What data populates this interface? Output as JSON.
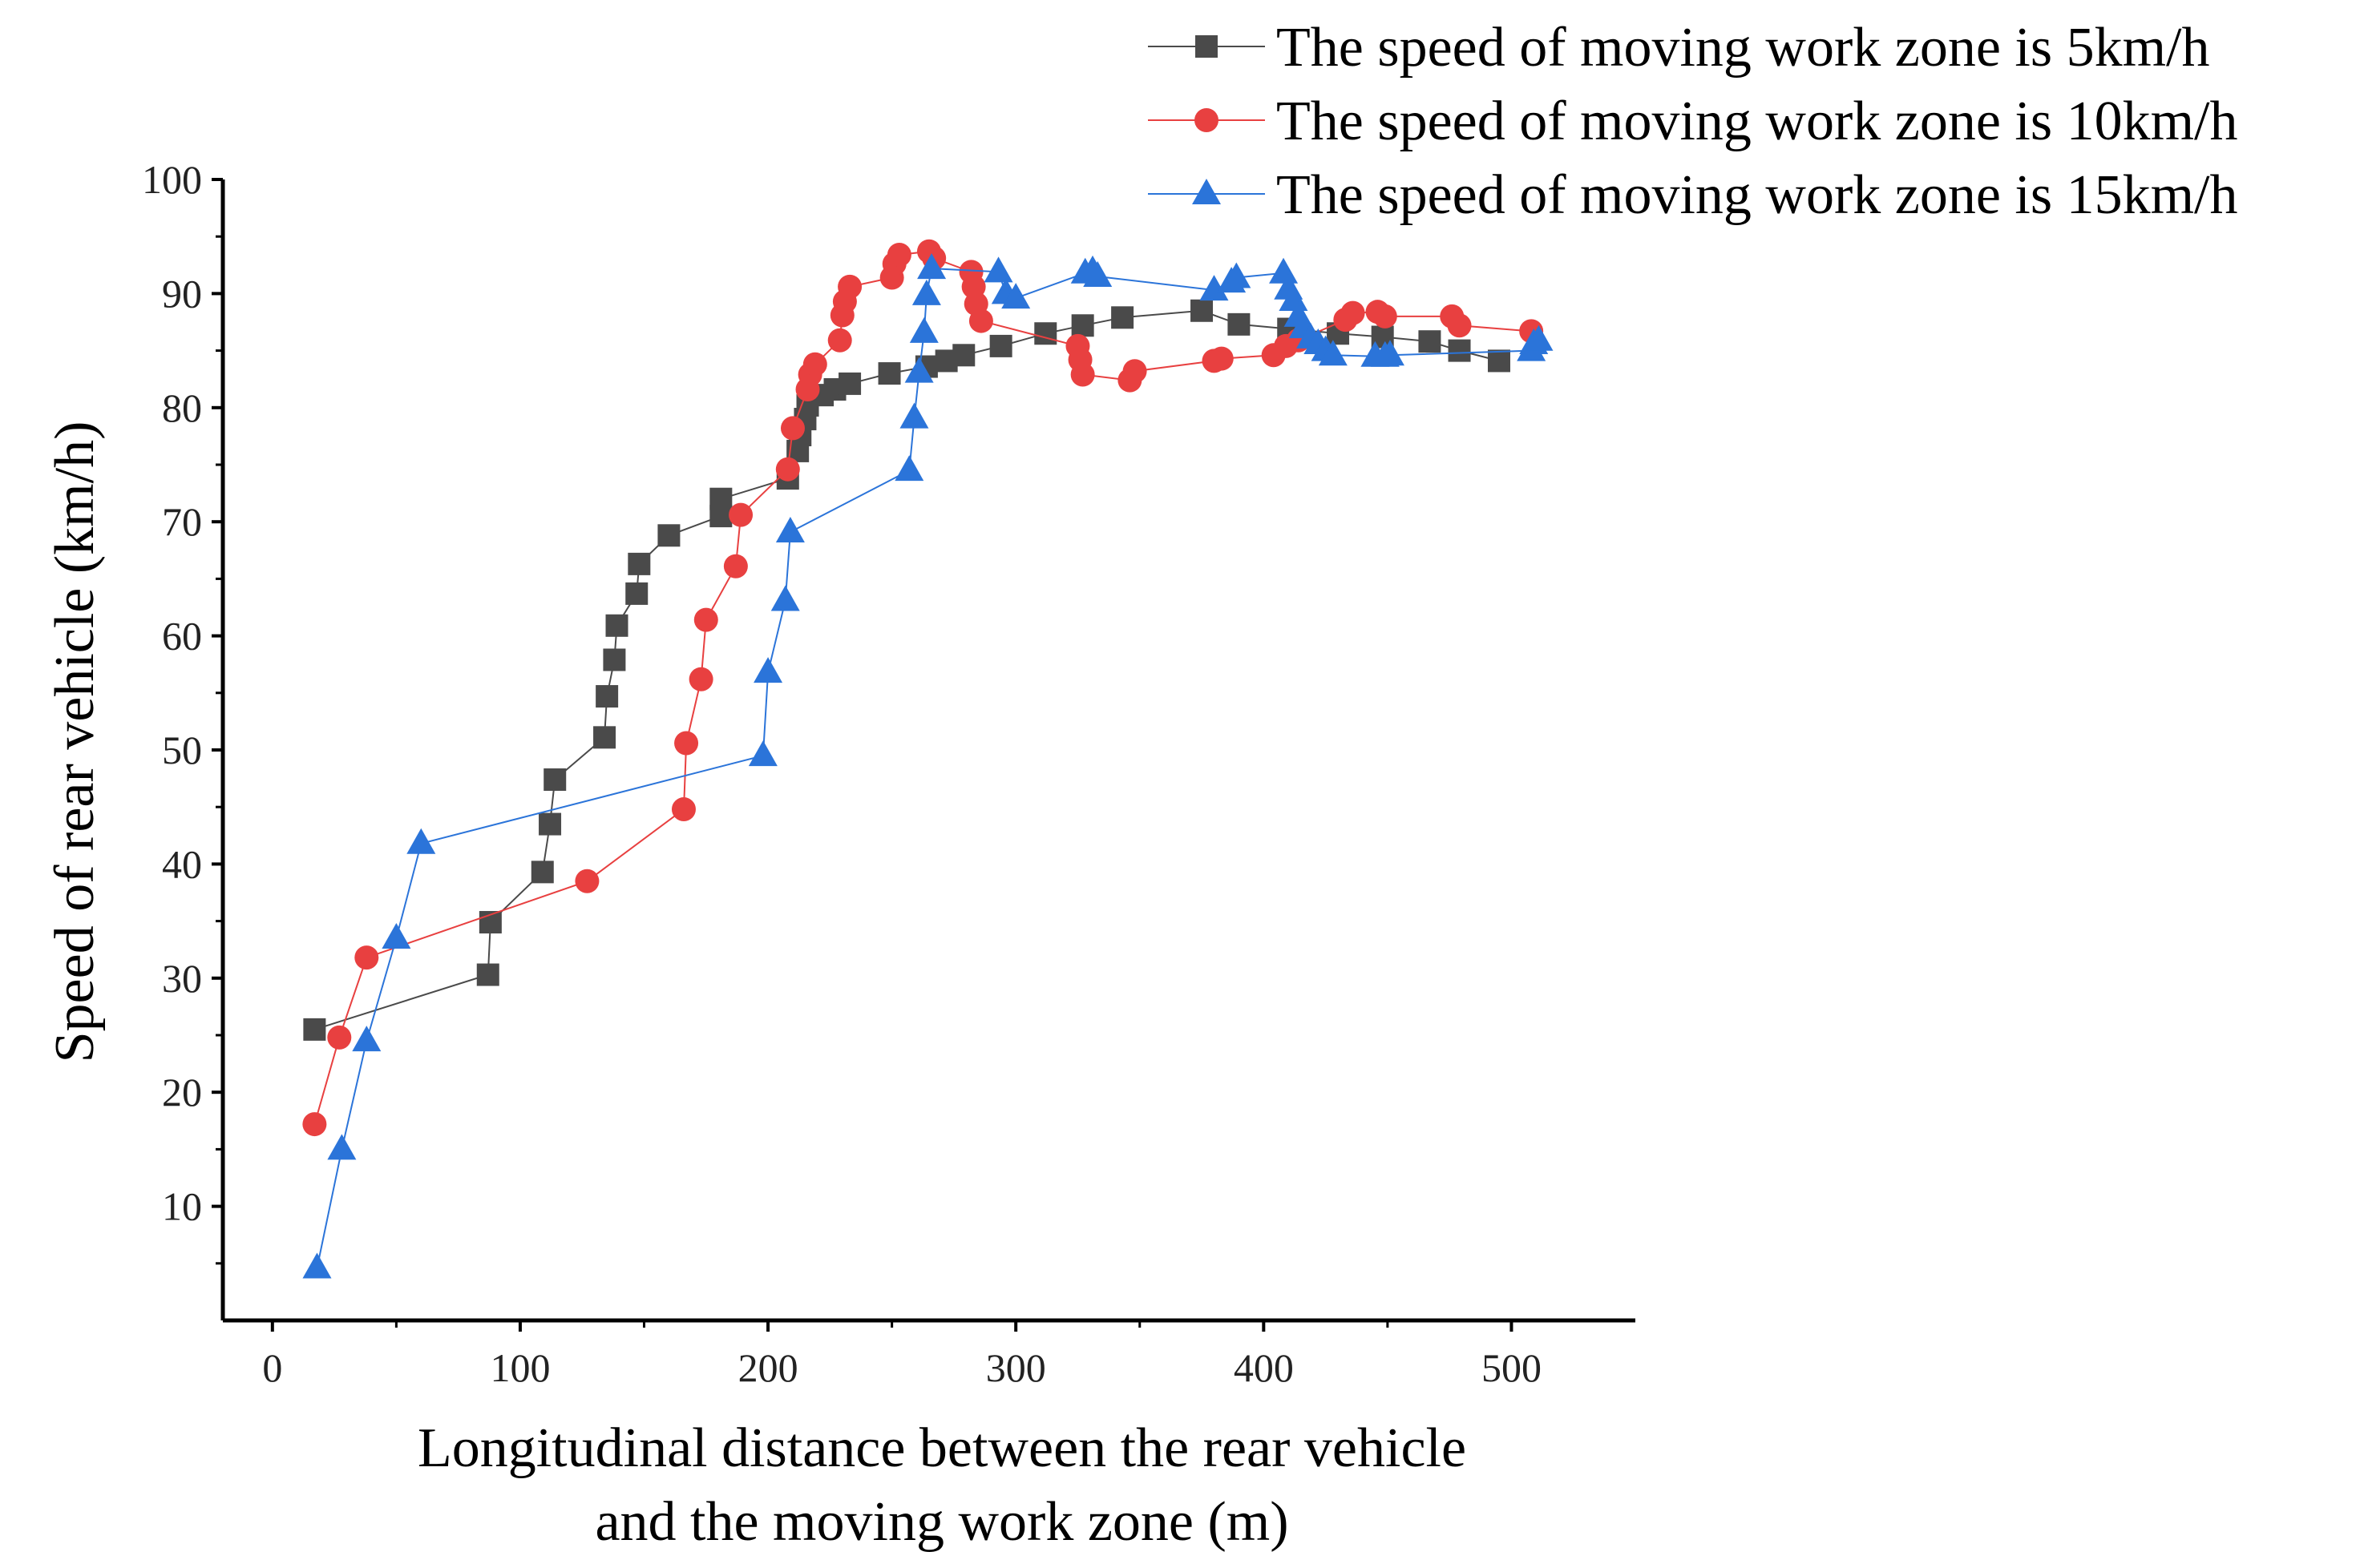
{
  "chart_data": {
    "type": "line",
    "title": "",
    "xlabel": [
      "Longitudinal distance between the rear vehicle",
      "and the moving work zone (m)"
    ],
    "ylabel": "Speed of rear vehicle (km/h)",
    "xlim": [
      -20,
      550
    ],
    "ylim": [
      0,
      100
    ],
    "xticks": [
      0,
      100,
      200,
      300,
      400,
      500
    ],
    "yticks": [
      10,
      20,
      30,
      40,
      50,
      60,
      70,
      80,
      90,
      100
    ],
    "grid": false,
    "legend_position": "top-right",
    "series": [
      {
        "name": "The speed of moving work zone is 5km/h",
        "color": "#4a4a4a",
        "marker": "square",
        "points": [
          [
            17,
            25.5
          ],
          [
            87,
            30.3
          ],
          [
            88,
            34.9
          ],
          [
            109,
            39.3
          ],
          [
            112,
            43.5
          ],
          [
            114,
            47.4
          ],
          [
            134,
            51.1
          ],
          [
            135,
            54.7
          ],
          [
            138,
            57.9
          ],
          [
            139,
            60.9
          ],
          [
            147,
            63.7
          ],
          [
            148,
            66.3
          ],
          [
            160,
            68.8
          ],
          [
            181,
            70.5
          ],
          [
            181,
            72.0
          ],
          [
            208,
            73.8
          ],
          [
            212,
            76.2
          ],
          [
            213,
            77.6
          ],
          [
            215,
            79.0
          ],
          [
            216,
            80.2
          ],
          [
            222,
            81.1
          ],
          [
            227,
            81.6
          ],
          [
            233,
            82.1
          ],
          [
            249,
            83.0
          ],
          [
            264,
            83.6
          ],
          [
            272,
            84.1
          ],
          [
            279,
            84.6
          ],
          [
            294,
            85.4
          ],
          [
            312,
            86.5
          ],
          [
            327,
            87.2
          ],
          [
            343,
            87.9
          ],
          [
            375,
            88.5
          ],
          [
            390,
            87.3
          ],
          [
            410,
            86.9
          ],
          [
            430,
            86.5
          ],
          [
            448,
            86.2
          ],
          [
            467,
            85.8
          ],
          [
            479,
            85.0
          ],
          [
            495,
            84.1
          ]
        ]
      },
      {
        "name": "The speed of moving work zone is 10km/h",
        "color": "#e84040",
        "marker": "circle",
        "points": [
          [
            17,
            17.2
          ],
          [
            27,
            24.8
          ],
          [
            38,
            31.8
          ],
          [
            127,
            38.5
          ],
          [
            166,
            44.8
          ],
          [
            167,
            50.6
          ],
          [
            173,
            56.2
          ],
          [
            175,
            61.4
          ],
          [
            187,
            66.1
          ],
          [
            189,
            70.6
          ],
          [
            208,
            74.6
          ],
          [
            210,
            78.2
          ],
          [
            216,
            81.6
          ],
          [
            217,
            82.9
          ],
          [
            219,
            83.8
          ],
          [
            229,
            85.9
          ],
          [
            230,
            88.1
          ],
          [
            231,
            89.3
          ],
          [
            233,
            90.6
          ],
          [
            250,
            91.4
          ],
          [
            251,
            92.6
          ],
          [
            253,
            93.4
          ],
          [
            265,
            93.7
          ],
          [
            267,
            93.1
          ],
          [
            282,
            91.9
          ],
          [
            283,
            90.6
          ],
          [
            284,
            89.1
          ],
          [
            286,
            87.6
          ],
          [
            325,
            85.4
          ],
          [
            326,
            84.2
          ],
          [
            327,
            82.9
          ],
          [
            346,
            82.4
          ],
          [
            348,
            83.2
          ],
          [
            380,
            84.1
          ],
          [
            383,
            84.3
          ],
          [
            404,
            84.6
          ],
          [
            409,
            85.4
          ],
          [
            414,
            85.9
          ],
          [
            433,
            87.7
          ],
          [
            436,
            88.3
          ],
          [
            446,
            88.4
          ],
          [
            449,
            88.0
          ],
          [
            476,
            88.0
          ],
          [
            479,
            87.2
          ],
          [
            508,
            86.7
          ]
        ]
      },
      {
        "name": "The speed of moving work zone is 15km/h",
        "color": "#2b74d9",
        "marker": "triangle",
        "points": [
          [
            18,
            4.6
          ],
          [
            28,
            15.0
          ],
          [
            38,
            24.5
          ],
          [
            50,
            33.5
          ],
          [
            60,
            41.8
          ],
          [
            198,
            49.5
          ],
          [
            200,
            56.8
          ],
          [
            207,
            63.1
          ],
          [
            209,
            69.1
          ],
          [
            257,
            74.5
          ],
          [
            259,
            79.1
          ],
          [
            261,
            83.1
          ],
          [
            263,
            86.6
          ],
          [
            264,
            89.9
          ],
          [
            266,
            92.2
          ],
          [
            293,
            91.9
          ],
          [
            296,
            90.0
          ],
          [
            300,
            89.6
          ],
          [
            328,
            91.8
          ],
          [
            331,
            92.0
          ],
          [
            333,
            91.5
          ],
          [
            380,
            90.3
          ],
          [
            387,
            91.0
          ],
          [
            389,
            91.4
          ],
          [
            408,
            91.8
          ],
          [
            410,
            90.4
          ],
          [
            412,
            89.4
          ],
          [
            414,
            88.0
          ],
          [
            416,
            87.0
          ],
          [
            419,
            86.1
          ],
          [
            422,
            85.6
          ],
          [
            425,
            85.0
          ],
          [
            428,
            84.6
          ],
          [
            445,
            84.5
          ],
          [
            449,
            84.5
          ],
          [
            451,
            84.6
          ],
          [
            508,
            85.0
          ],
          [
            509,
            85.6
          ],
          [
            511,
            85.9
          ]
        ]
      }
    ]
  }
}
